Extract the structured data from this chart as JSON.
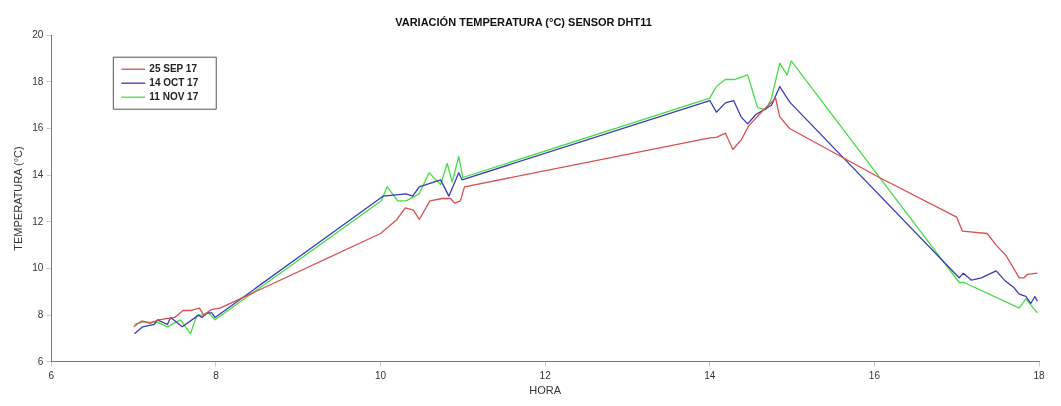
{
  "chart_data": {
    "type": "line",
    "title": "VARIACIÓN TEMPERATURA (°C) SENSOR DHT11",
    "xlabel": "HORA",
    "ylabel": "TEMPERATURA (°C)",
    "xlim": [
      6,
      18
    ],
    "xticks": [
      6,
      8,
      10,
      12,
      14,
      16,
      18
    ],
    "ylim": [
      6,
      20
    ],
    "yticks": [
      6,
      8,
      10,
      12,
      14,
      16,
      18,
      20
    ],
    "grid": false,
    "legend": "top left",
    "marker": "none",
    "line_style": "solid",
    "series": [
      {
        "name": "25 SEP 17",
        "color": "#d94f4f",
        "x": [
          7.0,
          7.1,
          7.2,
          7.3,
          7.4,
          7.5,
          7.6,
          7.7,
          7.8,
          7.85,
          7.95,
          8.05,
          10.0,
          10.2,
          10.3,
          10.4,
          10.47,
          10.6,
          10.75,
          10.85,
          10.9,
          10.97,
          11.02,
          14.0,
          14.08,
          14.19,
          14.28,
          14.38,
          14.47,
          14.64,
          14.8,
          14.85,
          14.97,
          16.06,
          17.0,
          17.07,
          17.37,
          17.48,
          17.6,
          17.76,
          17.82,
          17.86,
          17.98
        ],
        "values": [
          7.5,
          7.75,
          7.65,
          7.8,
          7.85,
          7.9,
          8.2,
          8.2,
          8.3,
          8.0,
          8.25,
          8.3,
          11.5,
          12.1,
          12.6,
          12.5,
          12.1,
          12.9,
          13.0,
          13.0,
          12.8,
          12.9,
          13.5,
          15.6,
          15.62,
          15.8,
          15.1,
          15.5,
          16.1,
          16.75,
          17.3,
          16.5,
          16.0,
          13.9,
          12.2,
          11.6,
          11.5,
          11.0,
          10.55,
          9.6,
          9.6,
          9.75,
          9.8
        ]
      },
      {
        "name": "14 OCT 17",
        "color": "#3a3ab8",
        "x": [
          7.01,
          7.11,
          7.25,
          7.29,
          7.41,
          7.45,
          7.59,
          7.79,
          7.83,
          7.89,
          7.95,
          7.99,
          10.03,
          10.31,
          10.39,
          10.47,
          10.73,
          10.83,
          10.95,
          10.99,
          14.0,
          14.08,
          14.19,
          14.29,
          14.38,
          14.46,
          14.56,
          14.75,
          14.85,
          14.94,
          14.98,
          17.03,
          17.08,
          17.18,
          17.3,
          17.48,
          17.58,
          17.69,
          17.76,
          17.84,
          17.9,
          17.95,
          17.98
        ],
        "values": [
          7.2,
          7.5,
          7.6,
          7.8,
          7.6,
          7.9,
          7.5,
          8.0,
          7.9,
          8.1,
          8.1,
          7.9,
          13.1,
          13.2,
          13.1,
          13.5,
          13.8,
          13.1,
          14.1,
          13.8,
          17.2,
          16.7,
          17.1,
          17.2,
          16.5,
          16.2,
          16.6,
          17.0,
          17.8,
          17.3,
          17.1,
          9.6,
          9.8,
          9.5,
          9.6,
          9.9,
          9.5,
          9.2,
          8.9,
          8.8,
          8.5,
          8.8,
          8.6
        ]
      },
      {
        "name": "11 NOV 17",
        "color": "#44dd44",
        "x": [
          7.01,
          7.11,
          7.21,
          7.29,
          7.41,
          7.57,
          7.69,
          7.77,
          7.87,
          7.91,
          7.99,
          10.01,
          10.08,
          10.21,
          10.31,
          10.47,
          10.59,
          10.73,
          10.81,
          10.87,
          10.95,
          11.0,
          14.0,
          14.08,
          14.19,
          14.3,
          14.46,
          14.58,
          14.68,
          14.75,
          14.85,
          14.94,
          14.99,
          17.03,
          17.09,
          17.76,
          17.84,
          17.98
        ],
        "values": [
          7.6,
          7.7,
          7.7,
          7.7,
          7.5,
          7.8,
          7.2,
          8.0,
          8.0,
          8.1,
          7.8,
          12.9,
          13.5,
          12.9,
          12.9,
          13.2,
          14.1,
          13.6,
          14.5,
          13.7,
          14.8,
          13.9,
          17.3,
          17.8,
          18.1,
          18.1,
          18.3,
          16.9,
          16.8,
          17.3,
          18.8,
          18.3,
          18.9,
          9.4,
          9.4,
          8.3,
          8.7,
          8.1
        ]
      }
    ]
  }
}
